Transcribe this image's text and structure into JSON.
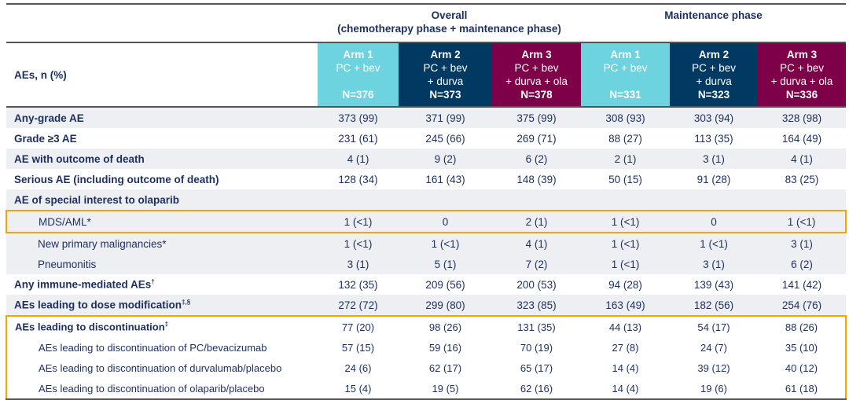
{
  "header": {
    "row_label": "AEs, n (%)",
    "overall_title": "Overall",
    "overall_subtitle": "(chemotherapy phase + maintenance phase)",
    "maintenance_title": "Maintenance phase",
    "arms": [
      {
        "name": "Arm 1",
        "line1": "PC + bev",
        "line2": "",
        "n": "N=376"
      },
      {
        "name": "Arm 2",
        "line1": "PC + bev",
        "line2": "+ durva",
        "n": "N=373"
      },
      {
        "name": "Arm 3",
        "line1": "PC + bev",
        "line2": "+ durva + ola",
        "n": "N=378"
      },
      {
        "name": "Arm 1",
        "line1": "PC + bev",
        "line2": "",
        "n": "N=331"
      },
      {
        "name": "Arm 2",
        "line1": "PC + bev",
        "line2": "+ durva",
        "n": "N=323"
      },
      {
        "name": "Arm 3",
        "line1": "PC + bev",
        "line2": "+ durva + ola",
        "n": "N=336"
      }
    ]
  },
  "colors": {
    "arm1": "#6dd3df",
    "arm2": "#003a63",
    "arm3": "#7d0048",
    "highlight_box": "#f0a800",
    "text": "#1c2f5e"
  },
  "rows": [
    {
      "label": "Any-grade AE",
      "sup": "",
      "values": [
        "373 (99)",
        "371 (99)",
        "375 (99)",
        "308 (93)",
        "303 (94)",
        "328 (98)"
      ]
    },
    {
      "label": "Grade ≥3 AE",
      "sup": "",
      "values": [
        "231 (61)",
        "245 (66)",
        "269 (71)",
        "88 (27)",
        "113 (35)",
        "164 (49)"
      ]
    },
    {
      "label": "AE with outcome of death",
      "sup": "",
      "values": [
        "4 (1)",
        "9 (2)",
        "6 (2)",
        "2 (1)",
        "3 (1)",
        "4 (1)"
      ]
    },
    {
      "label": "Serious AE (including outcome of death)",
      "sup": "",
      "values": [
        "128 (34)",
        "161 (43)",
        "148 (39)",
        "50 (15)",
        "91 (28)",
        "83 (25)"
      ]
    },
    {
      "label": "AE of special interest to olaparib",
      "sup": "",
      "values": [
        "",
        "",
        "",
        "",
        "",
        ""
      ]
    },
    {
      "label": "MDS/AML*",
      "sup": "",
      "values": [
        "1 (<1)",
        "0",
        "2 (1)",
        "1 (<1)",
        "0",
        "1 (<1)"
      ]
    },
    {
      "label": "New primary malignancies*",
      "sup": "",
      "values": [
        "1 (<1)",
        "1 (<1)",
        "4 (1)",
        "1 (<1)",
        "1 (<1)",
        "3 (1)"
      ]
    },
    {
      "label": "Pneumonitis",
      "sup": "",
      "values": [
        "3 (1)",
        "5 (1)",
        "7 (2)",
        "1 (<1)",
        "3 (1)",
        "6 (2)"
      ]
    },
    {
      "label": "Any immune-mediated AEs",
      "sup": "†",
      "values": [
        "132 (35)",
        "209 (56)",
        "200 (53)",
        "94 (28)",
        "139 (43)",
        "141 (42)"
      ]
    },
    {
      "label": "AEs leading to dose modification",
      "sup": "‡,§",
      "values": [
        "272 (72)",
        "299 (80)",
        "323 (85)",
        "163 (49)",
        "182 (56)",
        "254 (76)"
      ]
    },
    {
      "label": "AEs leading to discontinuation",
      "sup": "‡",
      "values": [
        "77 (20)",
        "98 (26)",
        "131 (35)",
        "44 (13)",
        "54 (17)",
        "88 (26)"
      ]
    },
    {
      "label": "AEs leading to discontinuation of PC/bevacizumab",
      "sup": "",
      "values": [
        "57 (15)",
        "59 (16)",
        "70 (19)",
        "27 (8)",
        "24 (7)",
        "35 (10)"
      ]
    },
    {
      "label": "AEs leading to discontinuation of durvalumab/placebo",
      "sup": "",
      "values": [
        "24 (6)",
        "62 (17)",
        "65 (17)",
        "14 (4)",
        "39 (12)",
        "40 (12)"
      ]
    },
    {
      "label": "AEs leading to discontinuation of olaparib/placebo",
      "sup": "",
      "values": [
        "15 (4)",
        "19 (5)",
        "62 (16)",
        "14 (4)",
        "19 (6)",
        "61 (18)"
      ]
    }
  ]
}
